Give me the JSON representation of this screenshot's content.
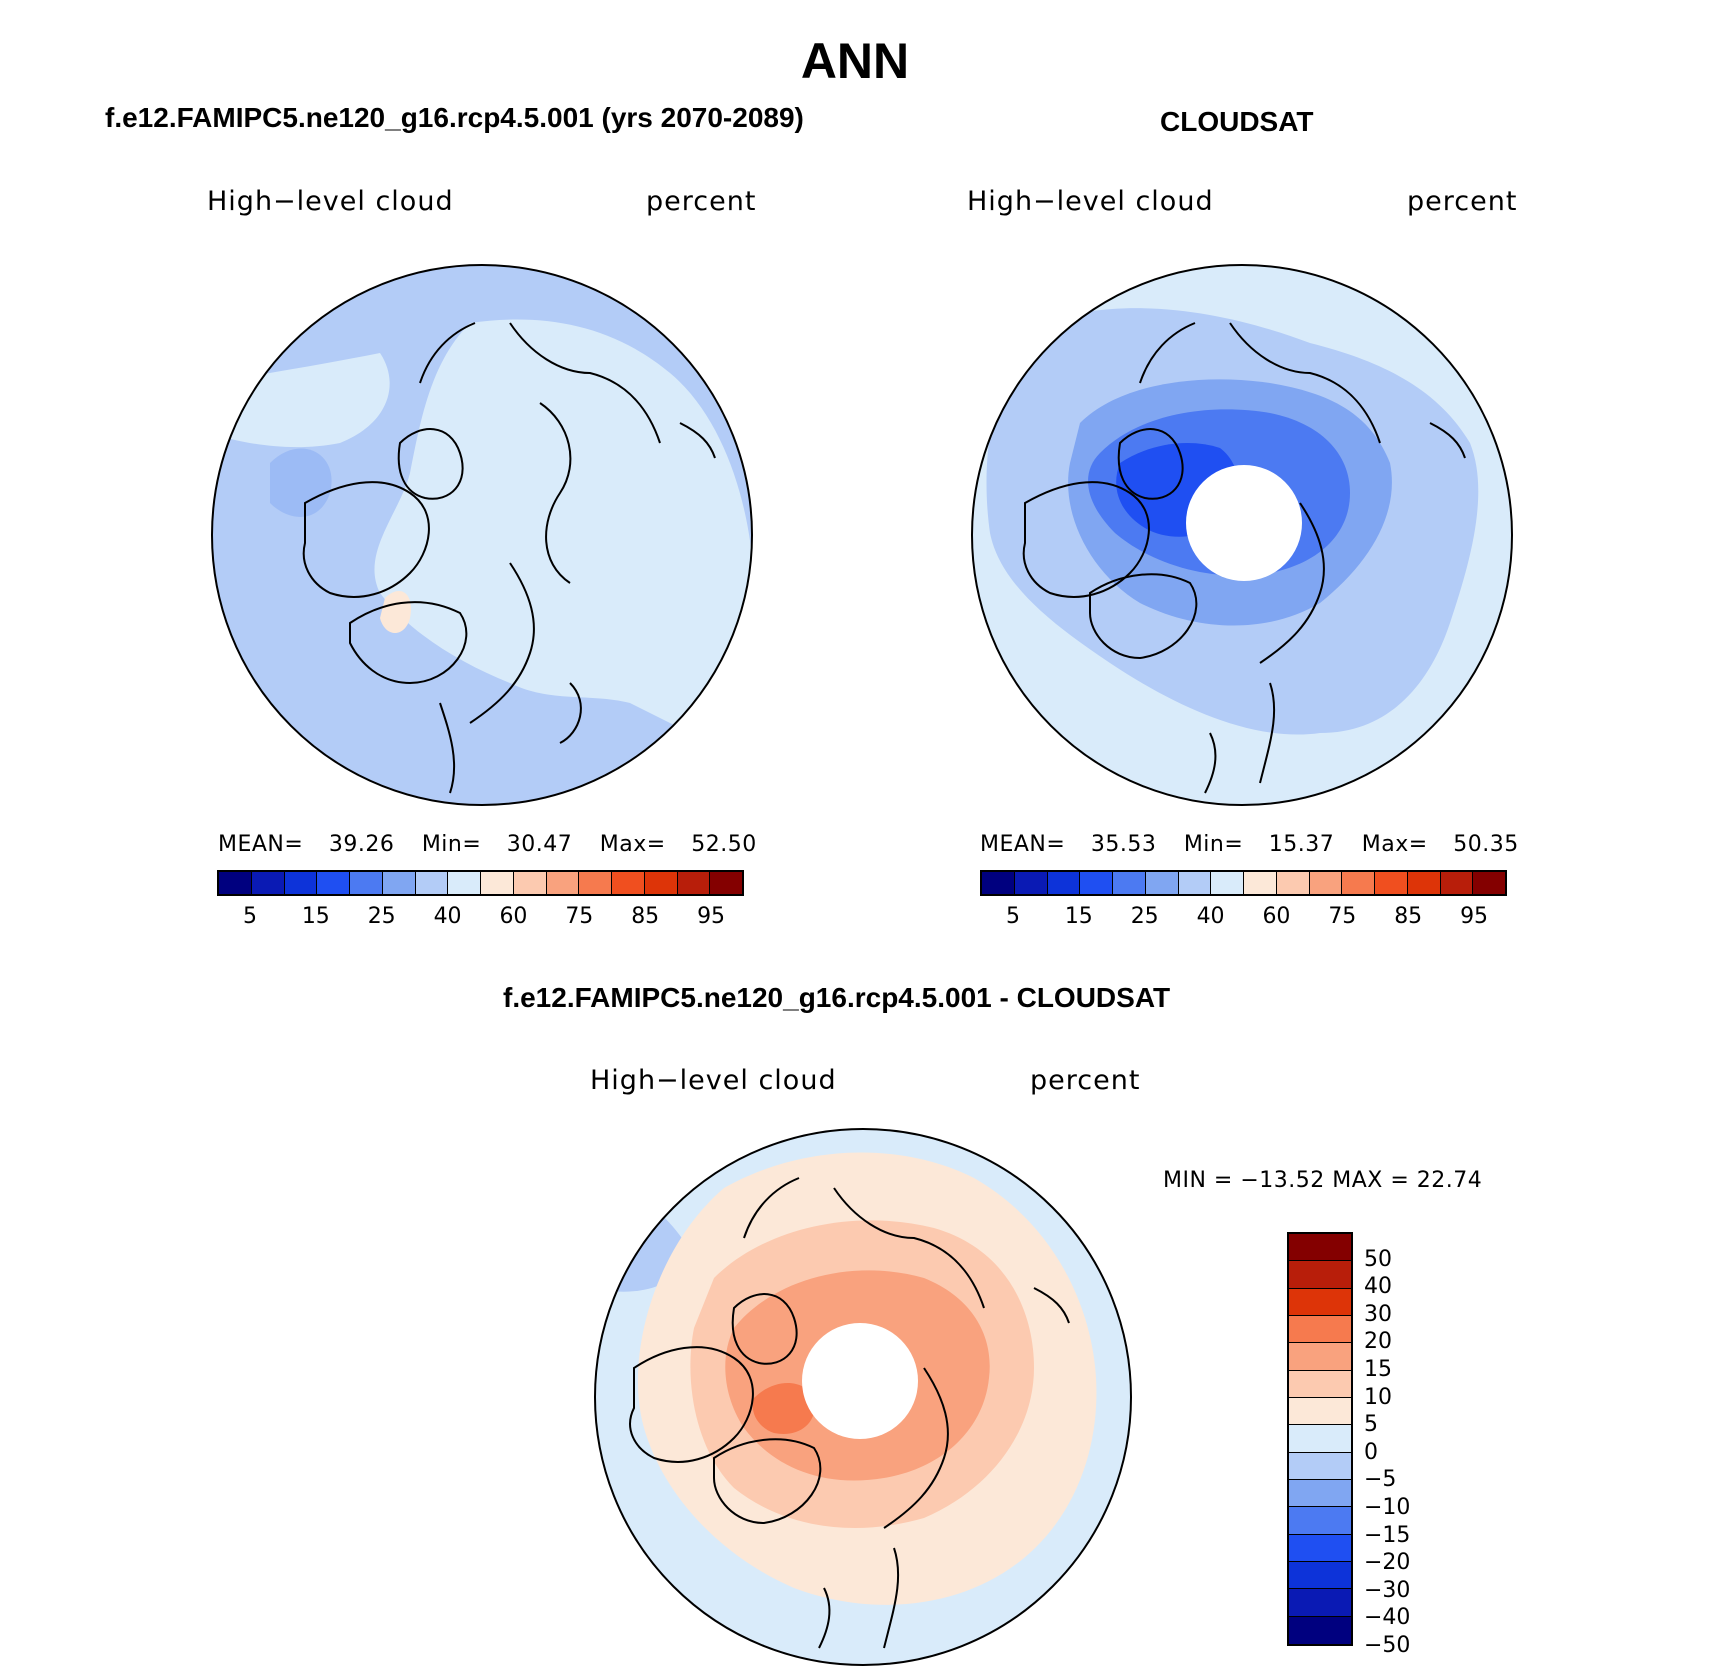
{
  "title": "ANN",
  "panels": [
    {
      "id": "model",
      "title": "f.e12.FAMIPC5.ne120_g16.rcp4.5.001 (yrs 2070-2089)",
      "left_label": "High−level cloud",
      "right_label": "percent",
      "stats": {
        "mean_label": "MEAN=",
        "mean": "39.26",
        "min_label": "Min=",
        "min": "30.47",
        "max_label": "Max=",
        "max": "52.50"
      }
    },
    {
      "id": "obs",
      "title": "CLOUDSAT",
      "left_label": "High−level cloud",
      "right_label": "percent",
      "stats": {
        "mean_label": "MEAN=",
        "mean": "35.53",
        "min_label": "Min=",
        "min": "15.37",
        "max_label": "Max=",
        "max": "50.35"
      }
    },
    {
      "id": "diff",
      "title": "f.e12.FAMIPC5.ne120_g16.rcp4.5.001 - CLOUDSAT",
      "left_label": "High−level cloud",
      "right_label": "percent",
      "minmax": "MIN = −13.52  MAX =   22.74"
    }
  ],
  "colorbar": {
    "colors": [
      "#00007f",
      "#0a1ab4",
      "#0d33d9",
      "#1f4ff2",
      "#4c7af2",
      "#80a6f2",
      "#b3ccf7",
      "#d9ebfa",
      "#fce8d8",
      "#fccab0",
      "#f9a27e",
      "#f67a4e",
      "#f04f1f",
      "#dd3408",
      "#b81e0a",
      "#840000"
    ],
    "ticks": [
      "5",
      "15",
      "25",
      "40",
      "60",
      "75",
      "85",
      "95"
    ]
  },
  "diff_colorbar": {
    "colors": [
      "#840000",
      "#b81e0a",
      "#dd3408",
      "#f67a4e",
      "#f9a27e",
      "#fccab0",
      "#fce8d8",
      "#d9ebfa",
      "#b3ccf7",
      "#80a6f2",
      "#4c7af2",
      "#1f4ff2",
      "#0d33d9",
      "#0a1ab4",
      "#00007f"
    ],
    "ticks": [
      "50",
      "40",
      "30",
      "20",
      "15",
      "10",
      "5",
      "0",
      "−5",
      "−10",
      "−15",
      "−20",
      "−30",
      "−40",
      "−50"
    ]
  },
  "map_colors": {
    "light_blue": "#d9ebfa",
    "mid_blue": "#b3ccf7",
    "blue": "#80a6f2",
    "strong_blue": "#4c7af2",
    "deep_blue": "#1f4ff2",
    "peach": "#fce8d8",
    "salmon": "#fccab0",
    "orange": "#f9a27e",
    "red_orange": "#f67a4e"
  }
}
